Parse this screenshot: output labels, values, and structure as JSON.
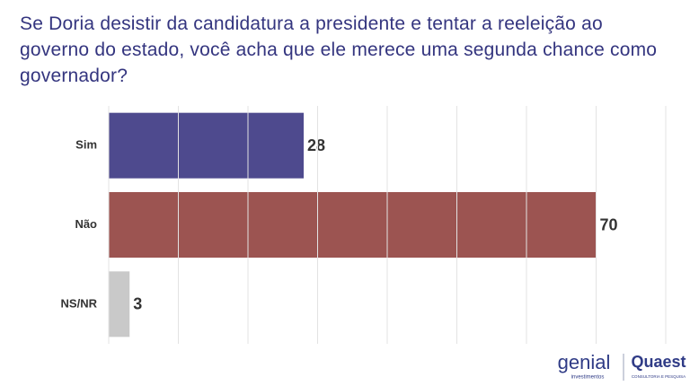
{
  "chart_data": {
    "type": "hbar",
    "title": "Se Doria desistir da candidatura a presidente e tentar a reeleição ao governo do estado, você acha que ele merece uma segunda chance como governador?",
    "categories": [
      "Sim",
      "Não",
      "NS/NR"
    ],
    "values": [
      28,
      70,
      3
    ],
    "colors": [
      "#4e4a8e",
      "#9c5451",
      "#c9c9c9"
    ],
    "xlim": [
      0,
      80
    ],
    "xticks": [
      0,
      10,
      20,
      30,
      40,
      50,
      60,
      70,
      80
    ],
    "grid": true
  },
  "footer": {
    "logo_left": "genial",
    "logo_left_sub": "investimentos",
    "logo_right": "Quaest",
    "logo_right_sub": "CONSULTORIA E PESQUISA"
  }
}
